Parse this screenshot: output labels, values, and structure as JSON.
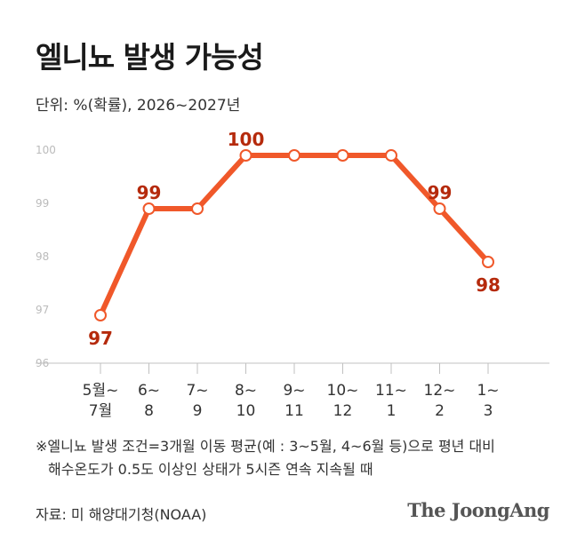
{
  "title": "엘니뇨 발생 가능성",
  "unit_label": "단위: %(확률), 2026~2027년",
  "colors": {
    "line": "#f0582a",
    "label": "#b52a0c",
    "axis": "#c0c0c0",
    "tick": "#bbbbbb"
  },
  "chart_data": {
    "type": "line",
    "categories": [
      [
        "5월~",
        "7월"
      ],
      [
        "6~",
        "8"
      ],
      [
        "7~",
        "9"
      ],
      [
        "8~",
        "10"
      ],
      [
        "9~",
        "11"
      ],
      [
        "10~",
        "12"
      ],
      [
        "11~",
        "1"
      ],
      [
        "12~",
        "2"
      ],
      [
        "1~",
        "3"
      ]
    ],
    "values": [
      97,
      99,
      99,
      100,
      100,
      100,
      100,
      99,
      98
    ],
    "data_labels": [
      "97",
      "99",
      "",
      "100",
      "",
      "",
      "",
      "99",
      "98"
    ],
    "label_below": [
      true,
      false,
      false,
      false,
      false,
      false,
      false,
      false,
      true
    ],
    "yticks": [
      "96",
      "97",
      "98",
      "99",
      "100"
    ],
    "ylim": [
      96,
      100
    ],
    "grid": false
  },
  "note": {
    "line1": "※엘니뇨 발생 조건=3개월 이동 평균(예 : 3~5월, 4~6월 등)으로 평년 대비",
    "line2": "해수온도가 0.5도 이상인 상태가 5시즌 연속 지속될 때"
  },
  "source": "자료: 미 해양대기청(NOAA)",
  "brand": "The JoongAng"
}
